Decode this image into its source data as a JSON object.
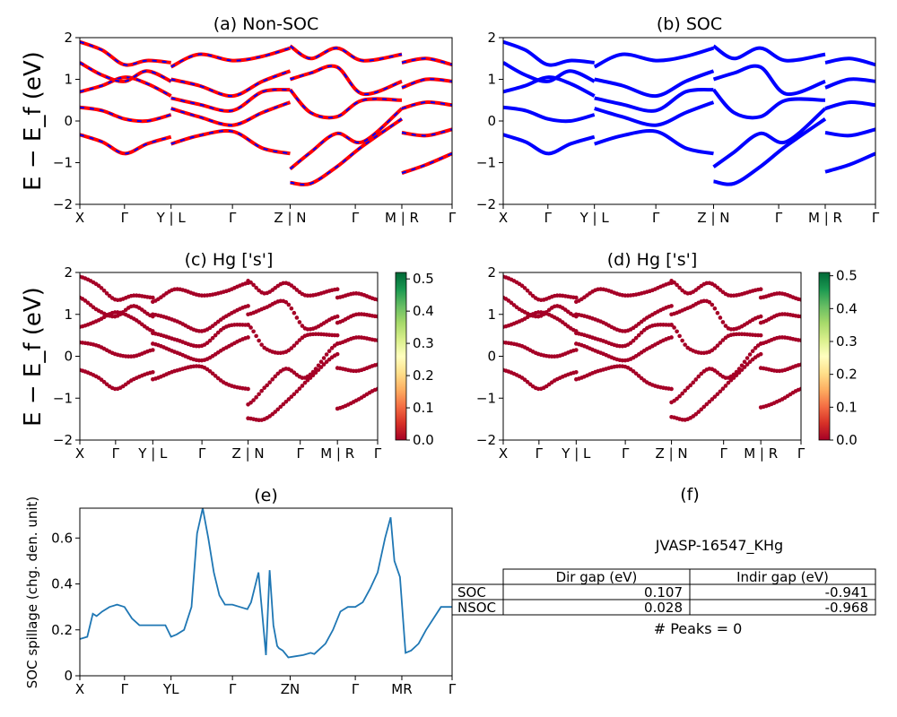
{
  "figure": {
    "panel_titles": [
      "(a) Non-SOC",
      "(b) SOC",
      "(c)  Hg ['s']",
      "(d) Hg ['s']",
      "(e)",
      "(f)"
    ],
    "ylabel_bands": "E − E_f (eV)",
    "ylabel_spillage": "SOC spillage (chg. den. unit)",
    "colors": {
      "nonsoc_red": "#ff0000",
      "nonsoc_blue": "#0000ff",
      "soc_blue": "#0000ff",
      "spillage_line": "#1f77b4"
    }
  },
  "chart_data": [
    {
      "type": "line",
      "title": "(a) Non-SOC",
      "ylabel": "E − E_f (eV)",
      "ylim": [
        -2,
        2
      ],
      "yticks": [
        -2,
        -1,
        0,
        1,
        2
      ],
      "xlim": [
        0,
        1
      ],
      "xtick_labels": [
        "X",
        "Γ",
        "Y | L",
        "Γ",
        "Z | N",
        "Γ",
        "M | R",
        "Γ"
      ],
      "xticks": [
        0,
        0.12,
        0.245,
        0.41,
        0.565,
        0.74,
        0.865,
        1
      ],
      "style": "red line with blue dashes (spin up/down overlap)",
      "segments": [
        {
          "x_range": [
            0,
            0.245
          ],
          "bands": [
            {
              "x": [
                0,
                0.06,
                0.12,
                0.18,
                0.245
              ],
              "y": [
                -0.33,
                -0.5,
                -0.78,
                -0.55,
                -0.38
              ]
            },
            {
              "x": [
                0,
                0.06,
                0.12,
                0.18,
                0.245
              ],
              "y": [
                0.33,
                0.25,
                0.05,
                0.0,
                0.15
              ]
            },
            {
              "x": [
                0,
                0.06,
                0.12,
                0.18,
                0.245
              ],
              "y": [
                0.7,
                0.85,
                1.05,
                0.9,
                0.6
              ]
            },
            {
              "x": [
                0,
                0.06,
                0.12,
                0.18,
                0.245
              ],
              "y": [
                1.4,
                1.1,
                0.95,
                1.2,
                0.95
              ]
            },
            {
              "x": [
                0,
                0.06,
                0.12,
                0.18,
                0.245
              ],
              "y": [
                1.9,
                1.7,
                1.35,
                1.45,
                1.4
              ]
            }
          ]
        },
        {
          "x_range": [
            0.245,
            0.565
          ],
          "bands": [
            {
              "x": [
                0.245,
                0.32,
                0.41,
                0.49,
                0.565
              ],
              "y": [
                -0.55,
                -0.35,
                -0.25,
                -0.65,
                -0.78
              ]
            },
            {
              "x": [
                0.245,
                0.32,
                0.41,
                0.49,
                0.565
              ],
              "y": [
                0.3,
                0.1,
                -0.1,
                0.2,
                0.45
              ]
            },
            {
              "x": [
                0.245,
                0.32,
                0.41,
                0.49,
                0.565
              ],
              "y": [
                0.55,
                0.4,
                0.25,
                0.7,
                0.75
              ]
            },
            {
              "x": [
                0.245,
                0.32,
                0.41,
                0.49,
                0.565
              ],
              "y": [
                1.0,
                0.85,
                0.6,
                0.95,
                1.2
              ]
            },
            {
              "x": [
                0.245,
                0.32,
                0.41,
                0.49,
                0.565
              ],
              "y": [
                1.3,
                1.6,
                1.45,
                1.55,
                1.75
              ]
            }
          ]
        },
        {
          "x_range": [
            0.565,
            0.865
          ],
          "bands": [
            {
              "x": [
                0.565,
                0.62,
                0.69,
                0.76,
                0.865
              ],
              "y": [
                -1.48,
                -1.5,
                -1.1,
                -0.6,
                0.05
              ]
            },
            {
              "x": [
                0.565,
                0.62,
                0.69,
                0.76,
                0.865
              ],
              "y": [
                -1.15,
                -0.75,
                -0.3,
                -0.5,
                0.3
              ]
            },
            {
              "x": [
                0.565,
                0.62,
                0.69,
                0.76,
                0.865
              ],
              "y": [
                0.75,
                0.2,
                0.1,
                0.5,
                0.5
              ]
            },
            {
              "x": [
                0.565,
                0.62,
                0.69,
                0.76,
                0.865
              ],
              "y": [
                1.0,
                1.15,
                1.3,
                0.65,
                0.95
              ]
            },
            {
              "x": [
                0.565,
                0.62,
                0.69,
                0.76,
                0.865
              ],
              "y": [
                1.8,
                1.5,
                1.75,
                1.45,
                1.6
              ]
            }
          ]
        },
        {
          "x_range": [
            0.865,
            1
          ],
          "bands": [
            {
              "x": [
                0.865,
                0.93,
                1
              ],
              "y": [
                -1.25,
                -1.05,
                -0.78
              ]
            },
            {
              "x": [
                0.865,
                0.93,
                1
              ],
              "y": [
                -0.28,
                -0.35,
                -0.2
              ]
            },
            {
              "x": [
                0.865,
                0.93,
                1
              ],
              "y": [
                0.3,
                0.45,
                0.38
              ]
            },
            {
              "x": [
                0.865,
                0.93,
                1
              ],
              "y": [
                0.8,
                1.0,
                0.95
              ]
            },
            {
              "x": [
                0.865,
                0.93,
                1
              ],
              "y": [
                1.4,
                1.5,
                1.35
              ]
            }
          ]
        }
      ]
    },
    {
      "type": "line",
      "title": "(b) SOC",
      "ylim": [
        -2,
        2
      ],
      "yticks": [
        -2,
        -1,
        0,
        1,
        2
      ],
      "xlim": [
        0,
        1
      ],
      "xtick_labels": [
        "X",
        "Γ",
        "Y | L",
        "Γ",
        "Z | N",
        "Γ",
        "M | R",
        "Γ"
      ],
      "xticks": [
        0,
        0.12,
        0.245,
        0.41,
        0.565,
        0.74,
        0.865,
        1
      ],
      "style": "solid blue",
      "segments": [
        {
          "x_range": [
            0,
            0.245
          ],
          "bands": [
            {
              "x": [
                0,
                0.06,
                0.12,
                0.18,
                0.245
              ],
              "y": [
                -0.33,
                -0.5,
                -0.78,
                -0.55,
                -0.38
              ]
            },
            {
              "x": [
                0,
                0.06,
                0.12,
                0.18,
                0.245
              ],
              "y": [
                0.33,
                0.25,
                0.05,
                0.0,
                0.15
              ]
            },
            {
              "x": [
                0,
                0.06,
                0.12,
                0.18,
                0.245
              ],
              "y": [
                0.7,
                0.85,
                1.05,
                0.9,
                0.6
              ]
            },
            {
              "x": [
                0,
                0.06,
                0.12,
                0.18,
                0.245
              ],
              "y": [
                1.4,
                1.1,
                0.95,
                1.2,
                0.95
              ]
            },
            {
              "x": [
                0,
                0.06,
                0.12,
                0.18,
                0.245
              ],
              "y": [
                1.9,
                1.7,
                1.35,
                1.45,
                1.4
              ]
            }
          ]
        },
        {
          "x_range": [
            0.245,
            0.565
          ],
          "bands": [
            {
              "x": [
                0.245,
                0.32,
                0.41,
                0.49,
                0.565
              ],
              "y": [
                -0.55,
                -0.35,
                -0.25,
                -0.65,
                -0.78
              ]
            },
            {
              "x": [
                0.245,
                0.32,
                0.41,
                0.49,
                0.565
              ],
              "y": [
                0.3,
                0.1,
                -0.1,
                0.2,
                0.45
              ]
            },
            {
              "x": [
                0.245,
                0.32,
                0.41,
                0.49,
                0.565
              ],
              "y": [
                0.55,
                0.4,
                0.25,
                0.7,
                0.75
              ]
            },
            {
              "x": [
                0.245,
                0.32,
                0.41,
                0.49,
                0.565
              ],
              "y": [
                1.0,
                0.85,
                0.6,
                0.95,
                1.2
              ]
            },
            {
              "x": [
                0.245,
                0.32,
                0.41,
                0.49,
                0.565
              ],
              "y": [
                1.3,
                1.6,
                1.45,
                1.55,
                1.75
              ]
            }
          ]
        },
        {
          "x_range": [
            0.565,
            0.865
          ],
          "bands": [
            {
              "x": [
                0.565,
                0.62,
                0.69,
                0.76,
                0.865
              ],
              "y": [
                -1.45,
                -1.5,
                -1.1,
                -0.6,
                0.05
              ]
            },
            {
              "x": [
                0.565,
                0.62,
                0.69,
                0.76,
                0.865
              ],
              "y": [
                -1.1,
                -0.75,
                -0.3,
                -0.5,
                0.3
              ]
            },
            {
              "x": [
                0.565,
                0.62,
                0.69,
                0.76,
                0.865
              ],
              "y": [
                0.75,
                0.2,
                0.1,
                0.5,
                0.5
              ]
            },
            {
              "x": [
                0.565,
                0.62,
                0.69,
                0.76,
                0.865
              ],
              "y": [
                1.0,
                1.15,
                1.3,
                0.65,
                0.95
              ]
            },
            {
              "x": [
                0.565,
                0.62,
                0.69,
                0.76,
                0.865
              ],
              "y": [
                1.8,
                1.5,
                1.75,
                1.45,
                1.6
              ]
            }
          ]
        },
        {
          "x_range": [
            0.865,
            1
          ],
          "bands": [
            {
              "x": [
                0.865,
                0.93,
                1
              ],
              "y": [
                -1.22,
                -1.05,
                -0.78
              ]
            },
            {
              "x": [
                0.865,
                0.93,
                1
              ],
              "y": [
                -0.28,
                -0.35,
                -0.2
              ]
            },
            {
              "x": [
                0.865,
                0.93,
                1
              ],
              "y": [
                0.3,
                0.45,
                0.38
              ]
            },
            {
              "x": [
                0.865,
                0.93,
                1
              ],
              "y": [
                0.8,
                1.0,
                0.95
              ]
            },
            {
              "x": [
                0.865,
                0.93,
                1
              ],
              "y": [
                1.4,
                1.5,
                1.35
              ]
            }
          ]
        }
      ]
    },
    {
      "type": "scatter",
      "title": "(c)  Hg ['s']",
      "ylabel": "E − E_f (eV)",
      "ylim": [
        -2,
        2
      ],
      "yticks": [
        -2,
        -1,
        0,
        1,
        2
      ],
      "xtick_labels": [
        "X",
        "Γ",
        "Y | L",
        "Γ",
        "Z | N",
        "Γ",
        "M | R",
        "Γ"
      ],
      "colorbar": {
        "range": [
          0.0,
          0.52
        ],
        "ticks": [
          0.0,
          0.1,
          0.2,
          0.3,
          0.4,
          0.5
        ],
        "colormap": "RdYlGn"
      },
      "point_weight": "≈0.0 for all points (dark red)",
      "bands_from": "Non-SOC band structure sampled as points"
    },
    {
      "type": "scatter",
      "title": "(d) Hg ['s']",
      "ylim": [
        -2,
        2
      ],
      "yticks": [
        -2,
        -1,
        0,
        1,
        2
      ],
      "xtick_labels": [
        "X",
        "Γ",
        "Y | L",
        "Γ",
        "Z | N",
        "Γ",
        "M | R",
        "Γ"
      ],
      "colorbar": {
        "range": [
          0.0,
          0.51
        ],
        "ticks": [
          0.0,
          0.1,
          0.2,
          0.3,
          0.4,
          0.5
        ],
        "colormap": "RdYlGn"
      },
      "point_weight": "≈0.0 for all points (dark red)",
      "bands_from": "SOC band structure sampled as points"
    },
    {
      "type": "line",
      "title": "(e)",
      "ylabel": "SOC spillage (chg. den. unit)",
      "ylim": [
        0,
        0.73
      ],
      "yticks": [
        0.0,
        0.2,
        0.4,
        0.6
      ],
      "xlim": [
        0,
        1
      ],
      "xtick_labels": [
        "X",
        "Γ",
        "YL",
        "Γ",
        "ZN",
        "Γ",
        "MR",
        "Γ"
      ],
      "xticks": [
        0,
        0.12,
        0.245,
        0.41,
        0.565,
        0.74,
        0.865,
        1
      ],
      "x": [
        0,
        0.02,
        0.035,
        0.045,
        0.06,
        0.08,
        0.1,
        0.12,
        0.14,
        0.16,
        0.18,
        0.2,
        0.23,
        0.245,
        0.26,
        0.28,
        0.3,
        0.315,
        0.33,
        0.345,
        0.36,
        0.375,
        0.39,
        0.41,
        0.43,
        0.45,
        0.46,
        0.48,
        0.5,
        0.51,
        0.52,
        0.53,
        0.535,
        0.545,
        0.56,
        0.58,
        0.6,
        0.62,
        0.63,
        0.64,
        0.66,
        0.68,
        0.7,
        0.72,
        0.74,
        0.76,
        0.78,
        0.8,
        0.82,
        0.835,
        0.845,
        0.86,
        0.875,
        0.89,
        0.91,
        0.93,
        0.95,
        0.97,
        1.0
      ],
      "y": [
        0.16,
        0.17,
        0.27,
        0.26,
        0.28,
        0.3,
        0.31,
        0.3,
        0.25,
        0.22,
        0.22,
        0.22,
        0.22,
        0.17,
        0.18,
        0.2,
        0.3,
        0.62,
        0.73,
        0.6,
        0.45,
        0.35,
        0.31,
        0.31,
        0.3,
        0.29,
        0.32,
        0.45,
        0.09,
        0.46,
        0.22,
        0.13,
        0.12,
        0.11,
        0.08,
        0.085,
        0.09,
        0.1,
        0.095,
        0.11,
        0.14,
        0.2,
        0.28,
        0.3,
        0.3,
        0.32,
        0.38,
        0.45,
        0.6,
        0.69,
        0.5,
        0.43,
        0.1,
        0.11,
        0.14,
        0.2,
        0.25,
        0.3,
        0.3
      ]
    },
    {
      "type": "table",
      "title": "(f)",
      "subtitle": "JVASP-16547_KHg",
      "columns": [
        "Dir gap (eV)",
        "Indir gap (eV)"
      ],
      "rows": [
        {
          "label": "SOC",
          "values": [
            "0.107",
            "-0.941"
          ]
        },
        {
          "label": "NSOC",
          "values": [
            "0.028",
            "-0.968"
          ]
        }
      ],
      "footer": "# Peaks = 0"
    }
  ]
}
